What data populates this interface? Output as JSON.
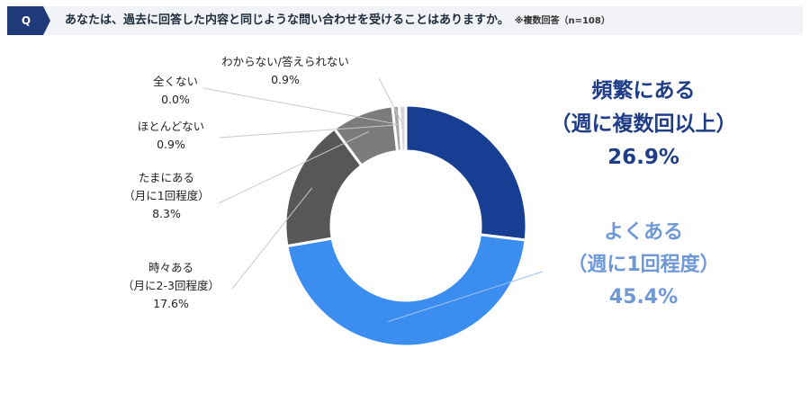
{
  "header": {
    "badge": "Q",
    "question": "あなたは、過去に回答した内容と同じような問い合わせを受けることはありますか。",
    "note": "※複数回答（n=108）"
  },
  "chart_data": {
    "type": "pie",
    "donut": true,
    "title": "",
    "slices": [
      {
        "label": "頻繁にある",
        "sublabel": "（週に複数回以上）",
        "value": 26.9,
        "value_text": "26.9%",
        "color": "#173e92"
      },
      {
        "label": "よくある",
        "sublabel": "（週に1回程度）",
        "value": 45.4,
        "value_text": "45.4%",
        "color": "#3b8ef0"
      },
      {
        "label": "時々ある",
        "sublabel": "（月に2-3回程度）",
        "value": 17.6,
        "value_text": "17.6%",
        "color": "#575757"
      },
      {
        "label": "たまにある",
        "sublabel": "（月に1回程度）",
        "value": 8.3,
        "value_text": "8.3%",
        "color": "#7c7c7c"
      },
      {
        "label": "ほとんどない",
        "sublabel": "",
        "value": 0.9,
        "value_text": "0.9%",
        "color": "#a6a6a6"
      },
      {
        "label": "全くない",
        "sublabel": "",
        "value": 0.0,
        "value_text": "0.0%",
        "color": "#c4c4c4"
      },
      {
        "label": "わからない/答えられない",
        "sublabel": "",
        "value": 0.9,
        "value_text": "0.9%",
        "color": "#d6d6d6"
      }
    ]
  }
}
